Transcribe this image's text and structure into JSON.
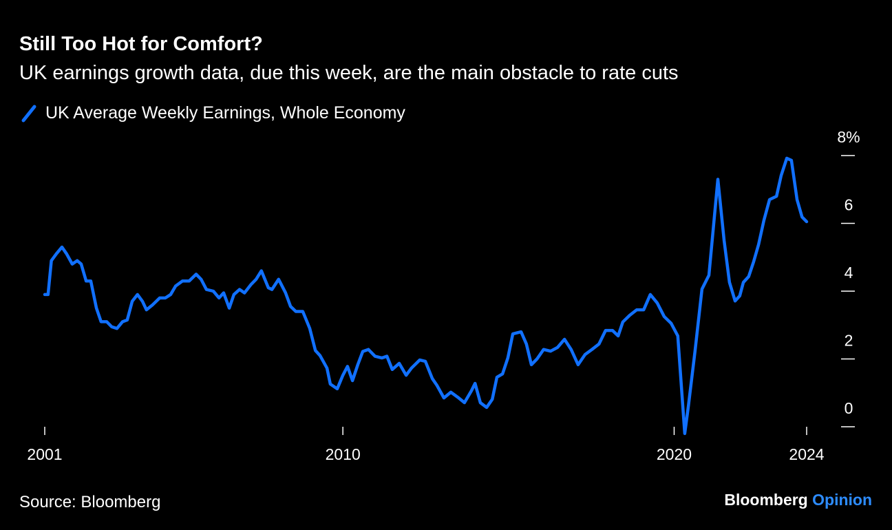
{
  "chart_data": {
    "type": "line",
    "title": "Still Too Hot for Comfort?",
    "subtitle": "UK earnings growth data, due this week, are the main obstacle to rate cuts",
    "source": "Source: Bloomberg",
    "brand": {
      "name": "Bloomberg",
      "section": "Opinion"
    },
    "x": [
      2001.0,
      2001.1,
      2001.2,
      2001.35,
      2001.52,
      2001.66,
      2001.83,
      2001.98,
      2002.1,
      2002.25,
      2002.39,
      2002.56,
      2002.7,
      2002.87,
      2003.02,
      2003.18,
      2003.35,
      2003.49,
      2003.64,
      2003.8,
      2003.95,
      2004.07,
      2004.26,
      2004.47,
      2004.64,
      2004.8,
      2004.95,
      2005.16,
      2005.36,
      2005.57,
      2005.72,
      2005.88,
      2006.09,
      2006.26,
      2006.4,
      2006.57,
      2006.71,
      2006.88,
      2007.03,
      2007.23,
      2007.38,
      2007.54,
      2007.75,
      2007.86,
      2008.06,
      2008.27,
      2008.42,
      2008.58,
      2008.79,
      2009.0,
      2009.17,
      2009.31,
      2009.52,
      2009.62,
      2009.83,
      2010.0,
      2010.14,
      2010.29,
      2010.45,
      2010.6,
      2010.77,
      2010.97,
      2011.18,
      2011.33,
      2011.49,
      2011.7,
      2011.91,
      2012.07,
      2012.32,
      2012.49,
      2012.7,
      2012.84,
      2013.05,
      2013.26,
      2013.47,
      2013.67,
      2013.88,
      2013.99,
      2014.15,
      2014.34,
      2014.51,
      2014.65,
      2014.82,
      2014.98,
      2015.13,
      2015.38,
      2015.54,
      2015.69,
      2015.86,
      2016.06,
      2016.27,
      2016.48,
      2016.69,
      2016.89,
      2017.1,
      2017.31,
      2017.52,
      2017.73,
      2017.93,
      2018.14,
      2018.31,
      2018.45,
      2018.66,
      2018.87,
      2019.08,
      2019.28,
      2019.49,
      2019.7,
      2019.91,
      2020.11,
      2020.32,
      2020.43,
      2020.63,
      2020.84,
      2021.05,
      2021.32,
      2021.51,
      2021.67,
      2021.84,
      2021.98,
      2022.09,
      2022.25,
      2022.4,
      2022.55,
      2022.71,
      2022.88,
      2023.09,
      2023.23,
      2023.4,
      2023.54,
      2023.71,
      2023.86,
      2024.0
    ],
    "series": [
      {
        "name": "UK Average Weekly Earnings, Whole Economy",
        "color": "#1170ff",
        "values": [
          3.9,
          3.9,
          4.9,
          5.1,
          5.3,
          5.1,
          4.8,
          4.9,
          4.8,
          4.3,
          4.3,
          3.5,
          3.1,
          3.1,
          2.95,
          2.9,
          3.1,
          3.15,
          3.7,
          3.9,
          3.7,
          3.45,
          3.6,
          3.8,
          3.8,
          3.9,
          4.15,
          4.3,
          4.3,
          4.5,
          4.35,
          4.05,
          4.0,
          3.8,
          3.95,
          3.5,
          3.9,
          4.05,
          3.95,
          4.2,
          4.35,
          4.6,
          4.1,
          4.05,
          4.35,
          3.95,
          3.55,
          3.4,
          3.4,
          2.9,
          2.25,
          2.1,
          1.73,
          1.26,
          1.12,
          1.52,
          1.78,
          1.36,
          1.83,
          2.22,
          2.28,
          2.08,
          2.03,
          2.08,
          1.69,
          1.87,
          1.52,
          1.73,
          1.97,
          1.93,
          1.42,
          1.22,
          0.85,
          1.02,
          0.87,
          0.71,
          1.06,
          1.28,
          0.71,
          0.57,
          0.81,
          1.46,
          1.56,
          2.03,
          2.74,
          2.8,
          2.44,
          1.83,
          2.0,
          2.28,
          2.23,
          2.34,
          2.58,
          2.28,
          1.83,
          2.13,
          2.28,
          2.44,
          2.84,
          2.84,
          2.68,
          3.09,
          3.29,
          3.45,
          3.45,
          3.9,
          3.65,
          3.25,
          3.05,
          2.68,
          -0.2,
          0.61,
          2.23,
          4.06,
          4.47,
          7.3,
          5.48,
          4.26,
          3.71,
          3.86,
          4.26,
          4.43,
          4.87,
          5.38,
          6.09,
          6.7,
          6.8,
          7.41,
          7.92,
          7.86,
          6.7,
          6.19,
          6.05
        ]
      }
    ],
    "xlim": [
      2001,
      2024
    ],
    "xticks": [
      2001,
      2010,
      2020,
      2024
    ],
    "ylim": [
      0,
      8
    ],
    "yticks": [
      0,
      2,
      4,
      6,
      {
        "value": 8,
        "label": "8%"
      }
    ]
  }
}
